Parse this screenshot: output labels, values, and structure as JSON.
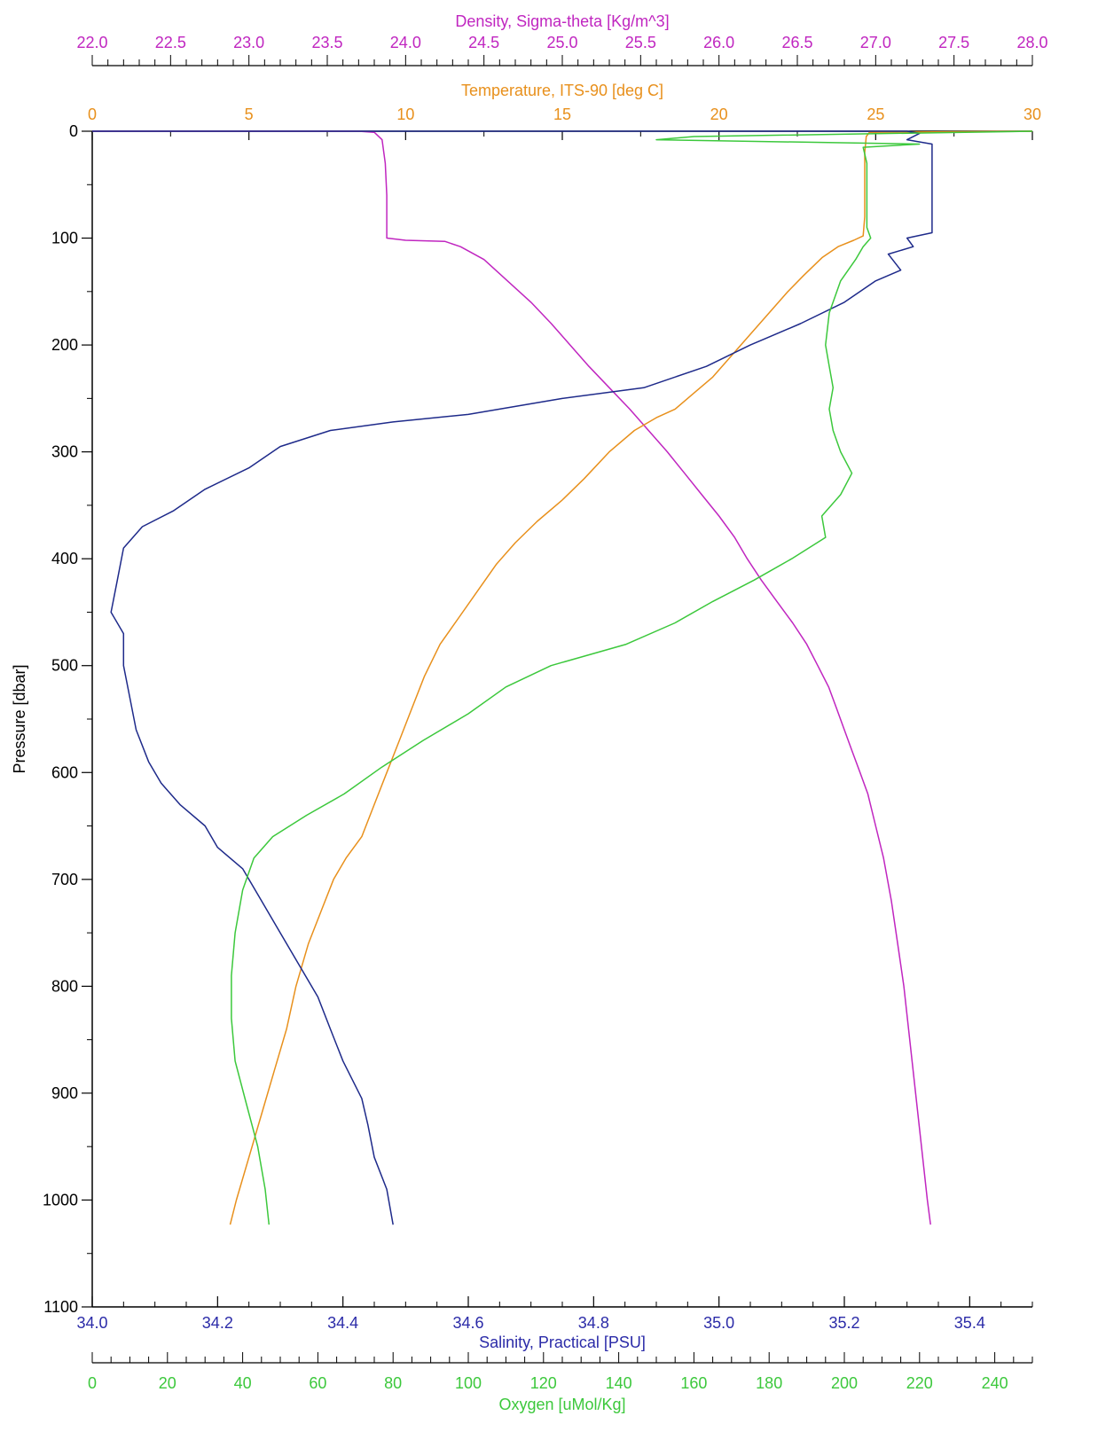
{
  "chart_data": {
    "type": "line",
    "title": "",
    "y_axis": {
      "label": "Pressure [dbar]",
      "range": [
        0,
        1100
      ],
      "inverted": true,
      "ticks": [
        0,
        100,
        200,
        300,
        400,
        500,
        600,
        700,
        800,
        900,
        1000,
        1100
      ],
      "color": "#000000"
    },
    "x_axes": [
      {
        "id": "density",
        "label": "Density, Sigma-theta [Kg/m^3]",
        "range": [
          22.0,
          28.0
        ],
        "ticks": [
          "22.0",
          "22.5",
          "23.0",
          "23.5",
          "24.0",
          "24.5",
          "25.0",
          "25.5",
          "26.0",
          "26.5",
          "27.0",
          "27.5",
          "28.0"
        ],
        "color": "#c026c0",
        "position": "top-outer"
      },
      {
        "id": "temperature",
        "label": "Temperature, ITS-90 [deg C]",
        "range": [
          0,
          30
        ],
        "ticks": [
          "0",
          "5",
          "10",
          "15",
          "20",
          "25",
          "30"
        ],
        "color": "#e8901c",
        "position": "top-inner"
      },
      {
        "id": "salinity",
        "label": "Salinity, Practical [PSU]",
        "range": [
          34.0,
          35.5
        ],
        "ticks": [
          "34.0",
          "34.2",
          "34.4",
          "34.6",
          "34.8",
          "35.0",
          "35.2",
          "35.4"
        ],
        "color": "#2b2ba8",
        "position": "bottom-inner"
      },
      {
        "id": "oxygen",
        "label": "Oxygen [uMol/Kg]",
        "range": [
          0,
          250
        ],
        "ticks": [
          "0",
          "20",
          "40",
          "60",
          "80",
          "100",
          "120",
          "140",
          "160",
          "180",
          "200",
          "220",
          "240"
        ],
        "color": "#3cc83c",
        "position": "bottom-outer"
      }
    ],
    "series": [
      {
        "axis": "density",
        "color": "#c026c0",
        "points": [
          [
            22.0,
            0
          ],
          [
            23.7,
            0
          ],
          [
            23.8,
            1
          ],
          [
            23.85,
            8
          ],
          [
            23.87,
            30
          ],
          [
            23.88,
            60
          ],
          [
            23.88,
            100
          ],
          [
            24.0,
            102
          ],
          [
            24.25,
            103
          ],
          [
            24.35,
            108
          ],
          [
            24.5,
            120
          ],
          [
            24.65,
            140
          ],
          [
            24.8,
            160
          ],
          [
            24.93,
            180
          ],
          [
            25.05,
            200
          ],
          [
            25.17,
            220
          ],
          [
            25.3,
            240
          ],
          [
            25.43,
            260
          ],
          [
            25.55,
            280
          ],
          [
            25.67,
            300
          ],
          [
            25.78,
            320
          ],
          [
            25.89,
            340
          ],
          [
            26.0,
            360
          ],
          [
            26.1,
            380
          ],
          [
            26.18,
            400
          ],
          [
            26.27,
            420
          ],
          [
            26.37,
            440
          ],
          [
            26.47,
            460
          ],
          [
            26.56,
            480
          ],
          [
            26.63,
            500
          ],
          [
            26.7,
            520
          ],
          [
            26.75,
            540
          ],
          [
            26.8,
            560
          ],
          [
            26.85,
            580
          ],
          [
            26.9,
            600
          ],
          [
            26.95,
            620
          ],
          [
            27.0,
            650
          ],
          [
            27.05,
            680
          ],
          [
            27.1,
            720
          ],
          [
            27.14,
            760
          ],
          [
            27.18,
            800
          ],
          [
            27.21,
            840
          ],
          [
            27.24,
            880
          ],
          [
            27.27,
            920
          ],
          [
            27.3,
            960
          ],
          [
            27.33,
            1000
          ],
          [
            27.35,
            1023
          ]
        ]
      },
      {
        "axis": "temperature",
        "color": "#e8901c",
        "points": [
          [
            30,
            0
          ],
          [
            24.8,
            1
          ],
          [
            24.7,
            5
          ],
          [
            24.65,
            20
          ],
          [
            24.65,
            50
          ],
          [
            24.65,
            80
          ],
          [
            24.6,
            98
          ],
          [
            24.3,
            102
          ],
          [
            23.8,
            108
          ],
          [
            23.3,
            118
          ],
          [
            22.7,
            135
          ],
          [
            22.2,
            150
          ],
          [
            21.6,
            170
          ],
          [
            21.0,
            190
          ],
          [
            20.4,
            210
          ],
          [
            19.8,
            230
          ],
          [
            19.2,
            245
          ],
          [
            18.6,
            260
          ],
          [
            18.0,
            268
          ],
          [
            17.3,
            280
          ],
          [
            16.5,
            300
          ],
          [
            15.7,
            325
          ],
          [
            15.0,
            345
          ],
          [
            14.2,
            365
          ],
          [
            13.5,
            385
          ],
          [
            12.9,
            405
          ],
          [
            12.3,
            430
          ],
          [
            11.7,
            455
          ],
          [
            11.1,
            480
          ],
          [
            10.6,
            510
          ],
          [
            10.2,
            540
          ],
          [
            9.8,
            570
          ],
          [
            9.4,
            600
          ],
          [
            9.0,
            630
          ],
          [
            8.6,
            660
          ],
          [
            8.1,
            680
          ],
          [
            7.7,
            700
          ],
          [
            7.3,
            730
          ],
          [
            6.9,
            760
          ],
          [
            6.5,
            800
          ],
          [
            6.2,
            840
          ],
          [
            5.8,
            880
          ],
          [
            5.4,
            920
          ],
          [
            5.0,
            960
          ],
          [
            4.6,
            1000
          ],
          [
            4.4,
            1023
          ]
        ]
      },
      {
        "axis": "salinity",
        "color": "#1e2a8a",
        "points": [
          [
            34.0,
            0
          ],
          [
            35.3,
            0
          ],
          [
            35.32,
            2
          ],
          [
            35.3,
            8
          ],
          [
            35.34,
            12
          ],
          [
            35.34,
            40
          ],
          [
            35.34,
            70
          ],
          [
            35.34,
            95
          ],
          [
            35.3,
            100
          ],
          [
            35.31,
            108
          ],
          [
            35.27,
            115
          ],
          [
            35.29,
            130
          ],
          [
            35.25,
            140
          ],
          [
            35.2,
            160
          ],
          [
            35.13,
            180
          ],
          [
            35.05,
            200
          ],
          [
            34.98,
            220
          ],
          [
            34.88,
            240
          ],
          [
            34.75,
            250
          ],
          [
            34.6,
            265
          ],
          [
            34.48,
            272
          ],
          [
            34.38,
            280
          ],
          [
            34.3,
            295
          ],
          [
            34.25,
            315
          ],
          [
            34.18,
            335
          ],
          [
            34.13,
            355
          ],
          [
            34.08,
            370
          ],
          [
            34.05,
            390
          ],
          [
            34.04,
            420
          ],
          [
            34.03,
            450
          ],
          [
            34.05,
            470
          ],
          [
            34.05,
            500
          ],
          [
            34.06,
            530
          ],
          [
            34.07,
            560
          ],
          [
            34.09,
            590
          ],
          [
            34.11,
            610
          ],
          [
            34.14,
            630
          ],
          [
            34.18,
            650
          ],
          [
            34.2,
            670
          ],
          [
            34.24,
            690
          ],
          [
            34.27,
            720
          ],
          [
            34.3,
            750
          ],
          [
            34.33,
            780
          ],
          [
            34.36,
            810
          ],
          [
            34.38,
            840
          ],
          [
            34.4,
            870
          ],
          [
            34.43,
            905
          ],
          [
            34.44,
            930
          ],
          [
            34.45,
            960
          ],
          [
            34.47,
            990
          ],
          [
            34.48,
            1023
          ]
        ]
      },
      {
        "axis": "oxygen",
        "color": "#3cc83c",
        "points": [
          [
            250,
            0
          ],
          [
            160,
            5
          ],
          [
            150,
            8
          ],
          [
            220,
            12
          ],
          [
            205,
            15
          ],
          [
            206,
            30
          ],
          [
            206,
            60
          ],
          [
            206,
            90
          ],
          [
            207,
            100
          ],
          [
            205,
            108
          ],
          [
            203,
            120
          ],
          [
            199,
            140
          ],
          [
            196,
            170
          ],
          [
            195,
            200
          ],
          [
            196,
            220
          ],
          [
            197,
            240
          ],
          [
            196,
            260
          ],
          [
            197,
            280
          ],
          [
            199,
            300
          ],
          [
            202,
            320
          ],
          [
            199,
            340
          ],
          [
            194,
            360
          ],
          [
            195,
            380
          ],
          [
            186,
            400
          ],
          [
            176,
            420
          ],
          [
            165,
            440
          ],
          [
            155,
            460
          ],
          [
            142,
            480
          ],
          [
            122,
            500
          ],
          [
            110,
            520
          ],
          [
            100,
            545
          ],
          [
            88,
            570
          ],
          [
            77,
            595
          ],
          [
            67,
            620
          ],
          [
            57,
            640
          ],
          [
            48,
            660
          ],
          [
            43,
            680
          ],
          [
            40,
            710
          ],
          [
            38,
            750
          ],
          [
            37,
            790
          ],
          [
            37,
            830
          ],
          [
            38,
            870
          ],
          [
            41,
            910
          ],
          [
            44,
            950
          ],
          [
            46,
            990
          ],
          [
            47,
            1023
          ]
        ]
      }
    ],
    "grid": false
  }
}
